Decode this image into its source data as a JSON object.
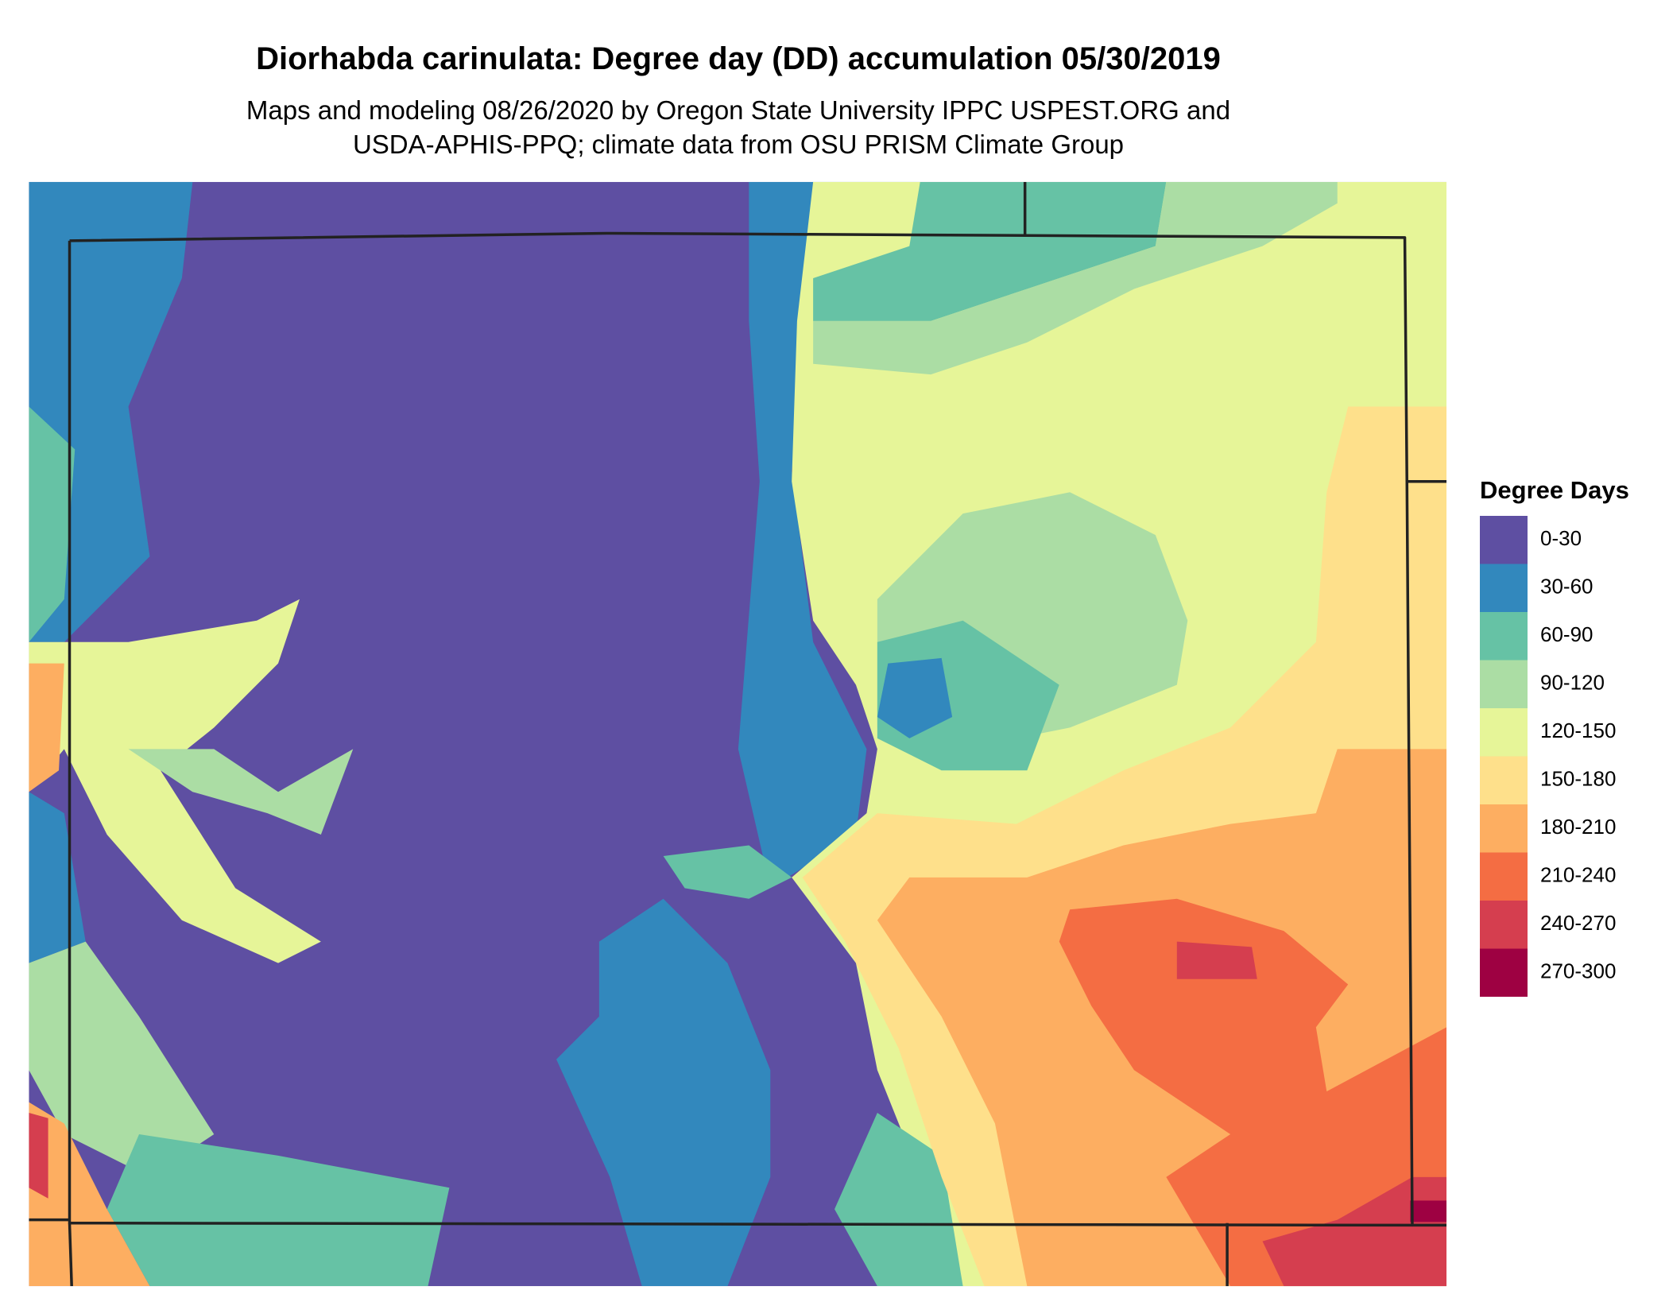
{
  "header": {
    "title": "Diorhabda carinulata: Degree day (DD) accumulation 05/30/2019",
    "subtitle": [
      "Maps and modeling 08/26/2020 by Oregon State University IPPC USPEST.ORG and",
      "USDA-APHIS-PPQ; climate data from OSU PRISM Climate Group"
    ]
  },
  "legend": {
    "title": "Degree Days",
    "items": [
      {
        "label": "0-30",
        "color": "#5E4FA2"
      },
      {
        "label": "30-60",
        "color": "#3288BD"
      },
      {
        "label": "60-90",
        "color": "#66C2A5"
      },
      {
        "label": "90-120",
        "color": "#ABDDA4"
      },
      {
        "label": "120-150",
        "color": "#E6F598"
      },
      {
        "label": "150-180",
        "color": "#FEE08B"
      },
      {
        "label": "180-210",
        "color": "#FDAE61"
      },
      {
        "label": "210-240",
        "color": "#F46D43"
      },
      {
        "label": "240-270",
        "color": "#D53E4F"
      },
      {
        "label": "270-300",
        "color": "#9E0142"
      }
    ]
  }
}
